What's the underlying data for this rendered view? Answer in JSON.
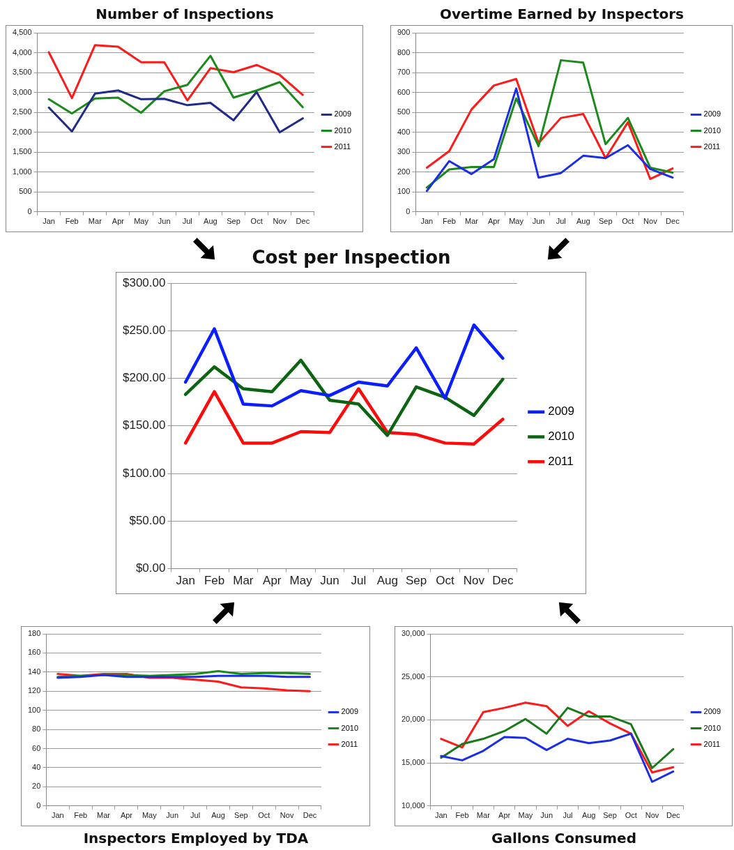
{
  "chart_data": [
    {
      "type": "line",
      "title": "Number of Inspections",
      "categories": [
        "Jan",
        "Feb",
        "Mar",
        "Apr",
        "May",
        "Jun",
        "Jul",
        "Aug",
        "Sep",
        "Oct",
        "Nov",
        "Dec"
      ],
      "series": [
        {
          "name": "2009",
          "color": "#1f2a8a",
          "values": [
            2620,
            2020,
            2970,
            3050,
            2830,
            2840,
            2680,
            2740,
            2300,
            3010,
            2000,
            2350
          ]
        },
        {
          "name": "2010",
          "color": "#1a8a1a",
          "values": [
            2830,
            2470,
            2850,
            2870,
            2490,
            3030,
            3190,
            3920,
            2870,
            3050,
            3260,
            2630
          ]
        },
        {
          "name": "2011",
          "color": "#ff1a1a",
          "values": [
            4010,
            2860,
            4190,
            4150,
            3760,
            3760,
            2800,
            3610,
            3510,
            3690,
            3440,
            2940
          ]
        }
      ],
      "ylim": [
        0,
        4500
      ],
      "yticks": [
        0,
        500,
        {
          "value": 1000,
          "label": "1,000"
        },
        {
          "value": 1500,
          "label": "1,500"
        },
        {
          "value": 2000,
          "label": "2,000"
        },
        {
          "value": 2500,
          "label": "2,500"
        },
        {
          "value": 3000,
          "label": "3,000"
        },
        {
          "value": 3500,
          "label": "3,500"
        },
        {
          "value": 4000,
          "label": "4,000"
        },
        {
          "value": 4500,
          "label": "4,500"
        }
      ],
      "grid": "y",
      "legend": "right"
    },
    {
      "type": "line",
      "title": "Overtime Earned by Inspectors",
      "categories": [
        "Jan",
        "Feb",
        "Mar",
        "Apr",
        "May",
        "Jun",
        "Jul",
        "Aug",
        "Sep",
        "Oct",
        "Nov",
        "Dec"
      ],
      "series": [
        {
          "name": "2009",
          "color": "#1a2ee6",
          "values": [
            105,
            255,
            190,
            265,
            620,
            172,
            195,
            282,
            270,
            335,
            215,
            172
          ]
        },
        {
          "name": "2010",
          "color": "#1a8a1a",
          "values": [
            122,
            213,
            225,
            225,
            570,
            330,
            762,
            750,
            340,
            472,
            222,
            197
          ]
        },
        {
          "name": "2011",
          "color": "#ff1a1a",
          "values": [
            222,
            305,
            515,
            635,
            668,
            345,
            472,
            492,
            270,
            450,
            165,
            218
          ]
        }
      ],
      "ylim": [
        0,
        900
      ],
      "yticks": [
        0,
        100,
        200,
        300,
        400,
        500,
        600,
        700,
        800,
        900
      ],
      "grid": "y",
      "legend": "right"
    },
    {
      "type": "line",
      "title": "Cost per Inspection",
      "categories": [
        "Jan",
        "Feb",
        "Mar",
        "Apr",
        "May",
        "Jun",
        "Jul",
        "Aug",
        "Sep",
        "Oct",
        "Nov",
        "Dec"
      ],
      "series": [
        {
          "name": "2009",
          "color": "#0a1eff",
          "values": [
            196,
            252,
            173,
            171,
            187,
            182,
            196,
            192,
            232,
            179,
            256,
            221
          ]
        },
        {
          "name": "2010",
          "color": "#0a6410",
          "values": [
            183,
            212,
            189,
            186,
            219,
            177,
            173,
            140,
            191,
            180,
            161,
            199
          ]
        },
        {
          "name": "2011",
          "color": "#ff0a0a",
          "values": [
            132,
            186,
            132,
            132,
            144,
            143,
            189,
            143,
            141,
            132,
            131,
            157
          ]
        }
      ],
      "ylim": [
        0,
        300
      ],
      "yticks": [
        {
          "value": 0,
          "label": "$0.00"
        },
        {
          "value": 50,
          "label": "$50.00"
        },
        {
          "value": 100,
          "label": "$100.00"
        },
        {
          "value": 150,
          "label": "$150.00"
        },
        {
          "value": 200,
          "label": "$200.00"
        },
        {
          "value": 250,
          "label": "$250.00"
        },
        {
          "value": 300,
          "label": "$300.00"
        }
      ],
      "grid": "y",
      "legend": "right"
    },
    {
      "type": "line",
      "title": "Inspectors Employed by TDA",
      "categories": [
        "Jan",
        "Feb",
        "Mar",
        "Apr",
        "May",
        "Jun",
        "Jul",
        "Aug",
        "Sep",
        "Oct",
        "Nov",
        "Dec"
      ],
      "series": [
        {
          "name": "2009",
          "color": "#1a2ee6",
          "values": [
            134,
            135,
            137,
            135,
            135,
            135,
            135,
            136,
            136,
            136,
            135,
            135
          ]
        },
        {
          "name": "2010",
          "color": "#1a8a1a",
          "values": [
            135,
            136,
            137,
            137,
            136,
            137,
            138,
            141,
            138,
            139,
            139,
            138
          ]
        },
        {
          "name": "2011",
          "color": "#ff1a1a",
          "values": [
            138,
            136,
            138,
            138,
            134,
            134,
            132,
            130,
            124,
            123,
            121,
            120
          ]
        }
      ],
      "ylim": [
        0,
        180
      ],
      "yticks": [
        0,
        20,
        40,
        60,
        80,
        100,
        120,
        140,
        160,
        180
      ],
      "grid": "y",
      "legend": "right"
    },
    {
      "type": "line",
      "title": "Gallons Consumed",
      "categories": [
        "Jan",
        "Feb",
        "Mar",
        "Apr",
        "May",
        "Jun",
        "Jul",
        "Aug",
        "Sep",
        "Oct",
        "Nov",
        "Dec"
      ],
      "series": [
        {
          "name": "2009",
          "color": "#1a2ee6",
          "values": [
            15800,
            15300,
            16400,
            18000,
            17900,
            16500,
            17800,
            17300,
            17600,
            18400,
            12800,
            14000
          ]
        },
        {
          "name": "2010",
          "color": "#1a7a1a",
          "values": [
            15600,
            17200,
            17800,
            18700,
            20100,
            18400,
            21400,
            20400,
            20400,
            19500,
            14400,
            16600
          ]
        },
        {
          "name": "2011",
          "color": "#ff1a1a",
          "values": [
            17800,
            16800,
            20900,
            21400,
            22000,
            21600,
            19300,
            21000,
            19600,
            18400,
            13900,
            14500
          ]
        }
      ],
      "ylim": [
        10000,
        30000
      ],
      "yticks": [
        {
          "value": 10000,
          "label": "10,000"
        },
        {
          "value": 15000,
          "label": "15,000"
        },
        {
          "value": 20000,
          "label": "20,000"
        },
        {
          "value": 25000,
          "label": "25,000"
        },
        {
          "value": 30000,
          "label": "30,000"
        }
      ],
      "grid": "y",
      "legend": "right"
    }
  ]
}
